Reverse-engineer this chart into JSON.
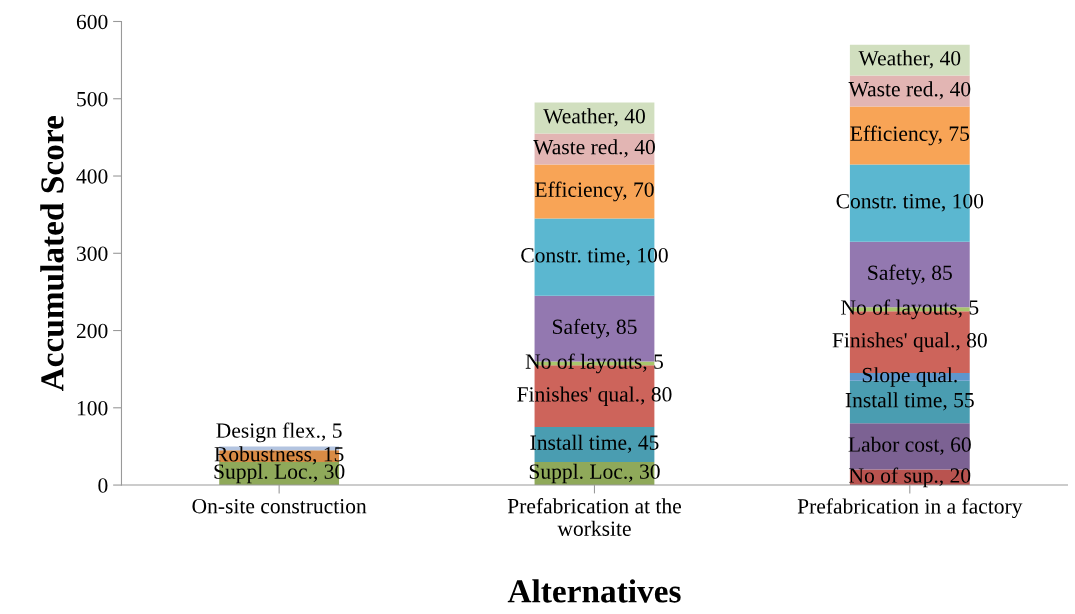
{
  "chart_data": {
    "type": "bar",
    "stacked": true,
    "xlabel": "Alternatives",
    "ylabel": "Accumulated Score",
    "categories": [
      "On-site construction",
      "Prefabrication at the\nworksite",
      "Prefabrication in a factory"
    ],
    "ylim": [
      0,
      600
    ],
    "yticks": [
      0,
      100,
      200,
      300,
      400,
      500,
      600
    ],
    "grid": false,
    "legend": false,
    "series": [
      {
        "color": "#b9534f",
        "values": [
          null,
          null,
          20
        ],
        "value_labels": [
          null,
          null,
          "No of sup., 20"
        ]
      },
      {
        "color": "#8fa95a",
        "values": [
          30,
          30,
          null
        ],
        "value_labels": [
          "Suppl. Loc., 30",
          "Suppl. Loc., 30",
          null
        ]
      },
      {
        "color": "#7c6293",
        "values": [
          null,
          null,
          60
        ],
        "value_labels": [
          null,
          null,
          "Labor cost, 60"
        ]
      },
      {
        "color": "#d98b45",
        "values": [
          15,
          null,
          null
        ],
        "value_labels": [
          "Robustness, 15",
          null,
          null
        ]
      },
      {
        "color": "#4a9db1",
        "values": [
          null,
          45,
          55
        ],
        "value_labels": [
          null,
          "Install time, 45",
          "Install time, 55"
        ]
      },
      {
        "color": "#5e96cc",
        "values": [
          null,
          null,
          10
        ],
        "value_labels": [
          null,
          null,
          "Slope qual."
        ]
      },
      {
        "color": "#b3c4e0",
        "values": [
          5,
          null,
          null
        ],
        "value_labels": [
          "Design flex., 5",
          null,
          null
        ]
      },
      {
        "color": "#cd645b",
        "values": [
          null,
          80,
          80
        ],
        "value_labels": [
          null,
          "Finishes' qual., 80",
          "Finishes' qual., 80"
        ]
      },
      {
        "color": "#a8c66c",
        "values": [
          null,
          5,
          5
        ],
        "value_labels": [
          null,
          "No of layouts, 5",
          "No of layouts, 5"
        ]
      },
      {
        "color": "#9378b0",
        "values": [
          null,
          85,
          85
        ],
        "value_labels": [
          null,
          "Safety, 85",
          "Safety, 85"
        ]
      },
      {
        "color": "#5bb7d0",
        "values": [
          null,
          100,
          100
        ],
        "value_labels": [
          null,
          "Constr. time, 100",
          "Constr. time, 100"
        ]
      },
      {
        "color": "#f8a456",
        "values": [
          null,
          70,
          75
        ],
        "value_labels": [
          null,
          "Efficiency, 70",
          "Efficiency, 75"
        ]
      },
      {
        "color": "#e2b5b3",
        "values": [
          null,
          40,
          40
        ],
        "value_labels": [
          null,
          "Waste red., 40",
          "Waste red., 40"
        ]
      },
      {
        "color": "#d1dfbf",
        "values": [
          null,
          40,
          40
        ],
        "value_labels": [
          null,
          "Weather, 40",
          "Weather, 40"
        ]
      }
    ]
  }
}
